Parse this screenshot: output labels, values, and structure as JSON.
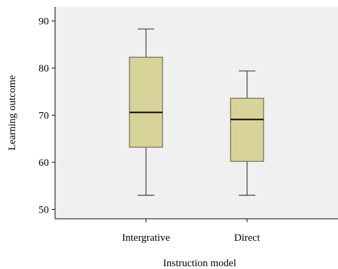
{
  "chart_data": {
    "type": "boxplot",
    "xlabel": "Instruction model",
    "ylabel": "Learning outcome",
    "ylim": [
      48,
      93
    ],
    "yticks": [
      50,
      60,
      70,
      80,
      90
    ],
    "grid": false,
    "categories": [
      "Intergrative",
      "Direct"
    ],
    "boxes": [
      {
        "category": "Intergrative",
        "min": 53,
        "q1": 63.2,
        "median": 70.6,
        "q3": 82.3,
        "max": 88.3
      },
      {
        "category": "Direct",
        "min": 53,
        "q1": 60.2,
        "median": 69.1,
        "q3": 73.6,
        "max": 79.4
      }
    ],
    "colors": {
      "plot_background": "#f0f0f0",
      "box_fill": "#d8d39b",
      "box_stroke": "#6b6b50",
      "median": "#000000",
      "whisker": "#3a3a3a",
      "axis": "#000000"
    }
  }
}
